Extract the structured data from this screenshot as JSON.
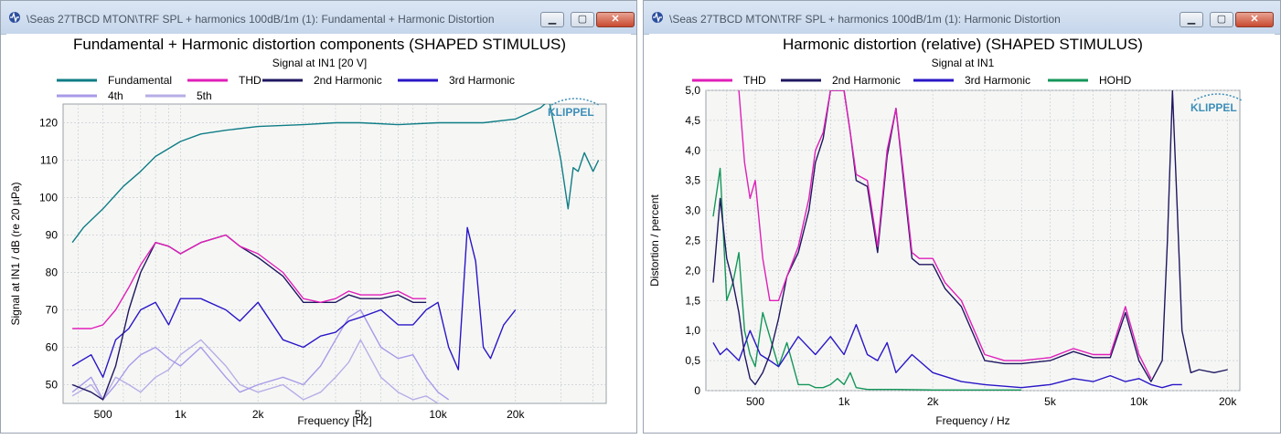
{
  "windows": {
    "left": {
      "title": "\\Seas 27TBCD MTON\\TRF SPL + harmonics 100dB/1m (1): Fundamental + Harmonic Distortion",
      "minimize_glyph": "▁",
      "maximize_glyph": "▢",
      "close_glyph": "✕"
    },
    "right": {
      "title": "\\Seas 27TBCD MTON\\TRF SPL + harmonics 100dB/1m (1): Harmonic Distortion",
      "minimize_glyph": "▁",
      "maximize_glyph": "▢",
      "close_glyph": "✕"
    }
  },
  "icons": {
    "app": "klippel-app-icon",
    "minimize": "minimize-icon",
    "maximize": "maximize-icon",
    "close": "close-icon"
  },
  "colors": {
    "titlebar": "#c6d6eb",
    "plot_bg": "#f6f7f5",
    "grid": "#c9cdd2",
    "klippel": "#3f8fb8"
  },
  "chart_data": [
    {
      "type": "line",
      "title": "Fundamental + Harmonic distortion components (SHAPED STIMULUS)",
      "subtitle": "Signal at IN1 [20 V]",
      "xlabel": "Frequency [Hz]",
      "ylabel": "Signal at IN1 / dB (re 20 µPa)",
      "xscale": "log",
      "xlim": [
        350,
        45000
      ],
      "ylim": [
        45,
        125
      ],
      "x_ticks": [
        500,
        1000,
        2000,
        5000,
        10000,
        20000
      ],
      "x_tick_labels": [
        "500",
        "1k",
        "2k",
        "5k",
        "10k",
        "20k"
      ],
      "y_ticks": [
        50,
        60,
        70,
        80,
        90,
        100,
        110,
        120
      ],
      "y_tick_labels": [
        "50",
        "60",
        "70",
        "80",
        "90",
        "100",
        "110",
        "120"
      ],
      "grid": true,
      "legend_position": "top",
      "logo": "KLIPPEL",
      "series": [
        {
          "name": "Fundamental",
          "color": "#0f7d86",
          "x": [
            380,
            420,
            500,
            600,
            700,
            800,
            1000,
            1200,
            1500,
            2000,
            3000,
            4000,
            5000,
            7000,
            10000,
            15000,
            20000,
            25000,
            27000,
            30000,
            32000,
            33500,
            35000,
            37000,
            40000,
            42000
          ],
          "y": [
            88,
            92,
            97,
            103,
            107,
            111,
            115,
            117,
            118,
            119,
            119.5,
            120,
            120,
            119.5,
            120,
            120,
            121,
            124,
            126,
            110,
            97,
            108,
            107,
            112,
            107,
            110
          ]
        },
        {
          "name": "THD",
          "color": "#e01fb9",
          "x": [
            380,
            450,
            500,
            560,
            630,
            700,
            800,
            900,
            1000,
            1200,
            1500,
            1700,
            2000,
            2500,
            3000,
            3500,
            4000,
            4500,
            5000,
            6000,
            7000,
            8000,
            9000
          ],
          "y": [
            65,
            65,
            66,
            70,
            76,
            82,
            88,
            87,
            85,
            88,
            90,
            87,
            85,
            80,
            73,
            72,
            73,
            75,
            74,
            74,
            75,
            73,
            73
          ]
        },
        {
          "name": "2nd Harmonic",
          "color": "#1f1760",
          "x": [
            380,
            450,
            500,
            560,
            630,
            700,
            800,
            900,
            1000,
            1200,
            1500,
            1700,
            2000,
            2500,
            3000,
            3500,
            4000,
            4500,
            5000,
            6000,
            7000,
            8000,
            9000
          ],
          "y": [
            50,
            48,
            46,
            55,
            70,
            80,
            88,
            87,
            85,
            88,
            90,
            87,
            84,
            79,
            72,
            72,
            72,
            74,
            73,
            73,
            74,
            72,
            72
          ]
        },
        {
          "name": "3rd Harmonic",
          "color": "#2a16c7",
          "x": [
            380,
            450,
            500,
            560,
            630,
            700,
            800,
            900,
            1000,
            1200,
            1500,
            1700,
            2000,
            2500,
            3000,
            3500,
            4000,
            4500,
            5000,
            6000,
            7000,
            8000,
            9000,
            10000,
            11000,
            12000,
            13000,
            14000,
            15000,
            16000,
            18000,
            20000
          ],
          "y": [
            55,
            58,
            52,
            62,
            65,
            70,
            72,
            66,
            73,
            73,
            70,
            67,
            72,
            62,
            60,
            63,
            64,
            67,
            68,
            70,
            66,
            66,
            70,
            72,
            60,
            54,
            92,
            83,
            60,
            57,
            66,
            70
          ]
        },
        {
          "name": "4th",
          "color": "#a99ae8",
          "x": [
            380,
            450,
            500,
            560,
            630,
            700,
            800,
            900,
            1000,
            1200,
            1500,
            1700,
            2000,
            2500,
            3000,
            3500,
            4000,
            4500,
            5000,
            6000,
            7000,
            8000,
            9000,
            10000,
            11000
          ],
          "y": [
            48,
            52,
            46,
            50,
            55,
            58,
            60,
            57,
            55,
            60,
            52,
            48,
            50,
            52,
            50,
            55,
            62,
            68,
            70,
            60,
            57,
            58,
            52,
            48,
            46
          ]
        },
        {
          "name": "5th",
          "color": "#b7aee6",
          "x": [
            380,
            450,
            500,
            560,
            630,
            700,
            800,
            900,
            1000,
            1200,
            1500,
            1700,
            2000,
            2500,
            3000,
            3500,
            4000,
            4500,
            5000,
            6000,
            7000,
            8000,
            9000,
            10000
          ],
          "y": [
            47,
            50,
            46,
            52,
            50,
            48,
            52,
            54,
            58,
            62,
            55,
            50,
            48,
            50,
            46,
            48,
            52,
            56,
            62,
            52,
            48,
            46,
            47,
            45
          ]
        }
      ]
    },
    {
      "type": "line",
      "title": "Harmonic distortion (relative) (SHAPED STIMULUS)",
      "subtitle": "Signal at IN1",
      "xlabel": "Frequency / Hz",
      "ylabel": "Distortion / percent",
      "xscale": "log",
      "xlim": [
        340,
        22000
      ],
      "ylim": [
        0,
        5.0
      ],
      "x_ticks": [
        500,
        1000,
        2000,
        5000,
        10000,
        20000
      ],
      "x_tick_labels": [
        "500",
        "1k",
        "2k",
        "5k",
        "10k",
        "20k"
      ],
      "y_ticks": [
        0,
        0.5,
        1.0,
        1.5,
        2.0,
        2.5,
        3.0,
        3.5,
        4.0,
        4.5,
        5.0
      ],
      "y_tick_labels": [
        "0",
        "0,5",
        "1,0",
        "1,5",
        "2,0",
        "2,5",
        "3,0",
        "3,5",
        "4,0",
        "4,5",
        "5,0"
      ],
      "grid": true,
      "legend_position": "top",
      "logo": "KLIPPEL",
      "series": [
        {
          "name": "THD",
          "color": "#e01fb9",
          "x": [
            440,
            460,
            480,
            500,
            530,
            560,
            600,
            640,
            700,
            760,
            800,
            850,
            900,
            950,
            1000,
            1050,
            1100,
            1200,
            1300,
            1400,
            1500,
            1600,
            1700,
            1800,
            2000,
            2200,
            2500,
            3000,
            3500,
            4000,
            5000,
            6000,
            7000,
            8000,
            9000,
            10000,
            11000
          ],
          "y": [
            5,
            3.8,
            3.2,
            3.5,
            2.2,
            1.5,
            1.5,
            1.9,
            2.4,
            3.2,
            4.0,
            4.3,
            5,
            5,
            5,
            4.3,
            3.6,
            3.5,
            2.4,
            4.0,
            4.7,
            3.5,
            2.3,
            2.2,
            2.2,
            1.8,
            1.5,
            0.6,
            0.5,
            0.5,
            0.55,
            0.7,
            0.6,
            0.6,
            1.4,
            0.6,
            0.2
          ]
        },
        {
          "name": "2nd Harmonic",
          "color": "#1f1760",
          "x": [
            360,
            380,
            400,
            420,
            440,
            460,
            480,
            500,
            530,
            560,
            600,
            640,
            700,
            760,
            800,
            850,
            900,
            950,
            1000,
            1050,
            1100,
            1200,
            1300,
            1400,
            1500,
            1600,
            1700,
            1800,
            2000,
            2200,
            2500,
            3000,
            3500,
            4000,
            5000,
            6000,
            7000,
            8000,
            9000,
            10000,
            11000,
            12000,
            12500,
            13000,
            13500,
            14000,
            15000,
            16000,
            18000,
            20000
          ],
          "y": [
            1.8,
            3.2,
            2.2,
            1.8,
            1.3,
            0.6,
            0.2,
            0.1,
            0.3,
            0.6,
            1.2,
            1.9,
            2.3,
            3.0,
            3.8,
            4.2,
            5,
            5,
            5,
            4.3,
            3.5,
            3.4,
            2.3,
            3.9,
            4.7,
            3.4,
            2.2,
            2.1,
            2.1,
            1.7,
            1.4,
            0.5,
            0.45,
            0.45,
            0.5,
            0.65,
            0.55,
            0.55,
            1.3,
            0.5,
            0.15,
            0.5,
            2.5,
            5,
            3.0,
            1.0,
            0.3,
            0.35,
            0.3,
            0.35
          ]
        },
        {
          "name": "3rd Harmonic",
          "color": "#2a16c7",
          "x": [
            360,
            380,
            400,
            440,
            480,
            520,
            560,
            600,
            700,
            800,
            900,
            1000,
            1100,
            1200,
            1300,
            1400,
            1500,
            1700,
            2000,
            2500,
            3000,
            4000,
            5000,
            6000,
            7000,
            8000,
            9000,
            10000,
            11000,
            12000,
            13000,
            14000
          ],
          "y": [
            0.8,
            0.6,
            0.7,
            0.5,
            1.0,
            0.6,
            0.5,
            0.4,
            0.9,
            0.6,
            0.9,
            0.6,
            1.1,
            0.6,
            0.5,
            0.8,
            0.3,
            0.6,
            0.3,
            0.15,
            0.1,
            0.05,
            0.1,
            0.2,
            0.15,
            0.25,
            0.15,
            0.2,
            0.1,
            0.05,
            0.1,
            0.1
          ]
        },
        {
          "name": "HOHD",
          "color": "#14965a",
          "x": [
            360,
            380,
            400,
            420,
            440,
            460,
            480,
            500,
            530,
            560,
            600,
            640,
            700,
            760,
            800,
            850,
            900,
            950,
            1000,
            1050,
            1100,
            1200,
            1500,
            2000,
            3000,
            4000
          ],
          "y": [
            2.9,
            3.7,
            1.5,
            1.8,
            2.3,
            1.0,
            0.6,
            0.4,
            1.3,
            0.9,
            0.4,
            0.8,
            0.1,
            0.1,
            0.05,
            0.05,
            0.1,
            0.2,
            0.1,
            0.3,
            0.05,
            0.02,
            0.02,
            0.01,
            0.01,
            0.01
          ]
        }
      ]
    }
  ]
}
